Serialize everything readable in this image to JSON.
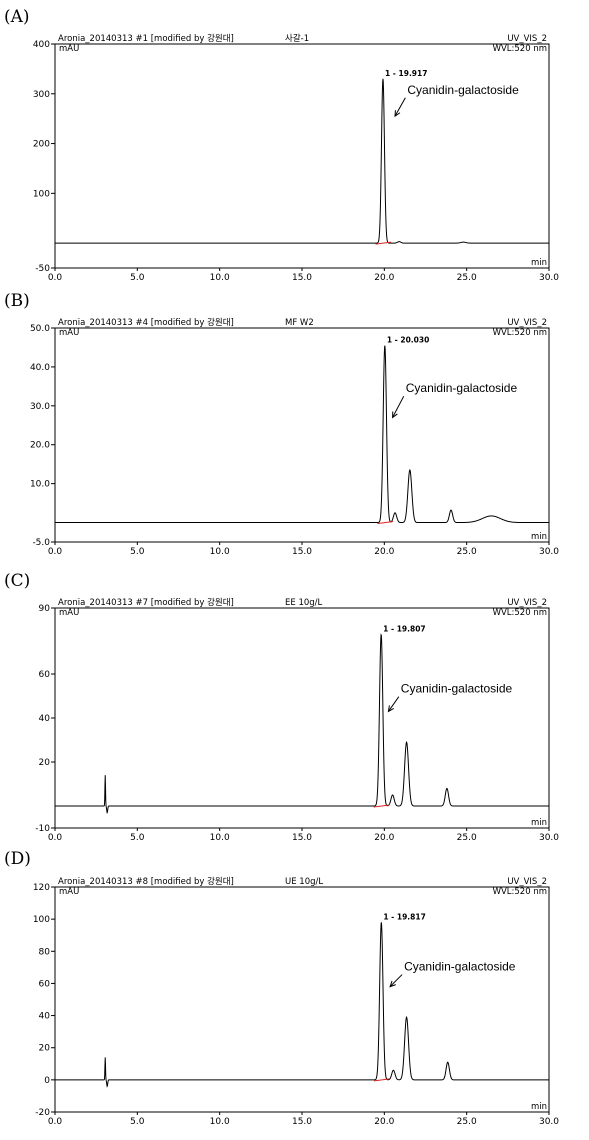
{
  "chart_data": [
    {
      "type": "line",
      "panel": "(A)",
      "header_left": "Aronia_20140313 #1 [modified by 강원대]",
      "sample": "사갈-1",
      "header_right_1": "UV_VIS_2",
      "header_right_2": "WVL:520 nm",
      "y_unit": "mAU",
      "x_unit": "min",
      "xlim": [
        0,
        30
      ],
      "ylim": [
        -50,
        400
      ],
      "x_ticks": [
        "0.0",
        "5.0",
        "10.0",
        "15.0",
        "20.0",
        "25.0",
        "30.0"
      ],
      "y_ticks": [
        {
          "v": -50,
          "t": "-50"
        },
        {
          "v": 100,
          "t": "100"
        },
        {
          "v": 200,
          "t": "200"
        },
        {
          "v": 300,
          "t": "300"
        },
        {
          "v": 400,
          "t": "400"
        }
      ],
      "y_label_ticks": [
        -50,
        100,
        200,
        300
      ],
      "baseline": 0,
      "peaks": [
        {
          "rt": 19.917,
          "height": 330,
          "width": 0.09
        },
        {
          "rt": 20.9,
          "height": 3,
          "width": 0.1
        },
        {
          "rt": 24.8,
          "height": 2,
          "width": 0.15
        }
      ],
      "main_peak_label": "1 - 19.917",
      "annotation": "Cyanidin-galactoside",
      "annotation_x": 21.4,
      "annotation_y": 300,
      "arrow_to": [
        20.65,
        255
      ]
    },
    {
      "type": "line",
      "panel": "(B)",
      "header_left": "Aronia_20140313 #4 [modified by 강원대]",
      "sample": "MF W2",
      "header_right_1": "UV_VIS_2",
      "header_right_2": "WVL:520 nm",
      "y_unit": "mAU",
      "x_unit": "min",
      "xlim": [
        0,
        30
      ],
      "ylim": [
        -5,
        50
      ],
      "x_ticks": [
        "0.0",
        "5.0",
        "10.0",
        "15.0",
        "20.0",
        "25.0",
        "30.0"
      ],
      "y_ticks": [
        {
          "v": -5,
          "t": "-5.0"
        },
        {
          "v": 10,
          "t": "10.0"
        },
        {
          "v": 20,
          "t": "20.0"
        },
        {
          "v": 30,
          "t": "30.0"
        },
        {
          "v": 40,
          "t": "40.0"
        },
        {
          "v": 50,
          "t": "50.0"
        }
      ],
      "baseline": 0,
      "peaks": [
        {
          "rt": 20.03,
          "height": 45.5,
          "width": 0.1
        },
        {
          "rt": 20.65,
          "height": 2.5,
          "width": 0.1
        },
        {
          "rt": 21.55,
          "height": 13.5,
          "width": 0.12
        },
        {
          "rt": 24.05,
          "height": 3.2,
          "width": 0.1
        },
        {
          "rt": 26.5,
          "height": 1.7,
          "width": 0.55
        }
      ],
      "main_peak_label": "1 - 20.030",
      "annotation": "Cyanidin-galactoside",
      "annotation_x": 21.3,
      "annotation_y": 33.5,
      "arrow_to": [
        20.5,
        27
      ]
    },
    {
      "type": "line",
      "panel": "(C)",
      "header_left": "Aronia_20140313 #7 [modified by 강원대]",
      "sample": "EE 10g/L",
      "header_right_1": "UV_VIS_2",
      "header_right_2": "WVL:520 nm",
      "y_unit": "mAU",
      "x_unit": "min",
      "xlim": [
        0,
        30
      ],
      "ylim": [
        -10,
        90
      ],
      "x_ticks": [
        "0.0",
        "5.0",
        "10.0",
        "15.0",
        "20.0",
        "25.0",
        "30.0"
      ],
      "y_ticks": [
        {
          "v": -10,
          "t": "-10"
        },
        {
          "v": 20,
          "t": "20"
        },
        {
          "v": 40,
          "t": "40"
        },
        {
          "v": 60,
          "t": "60"
        },
        {
          "v": 90,
          "t": "90"
        }
      ],
      "baseline": 0,
      "spike": {
        "rt": 3.05,
        "up": 14,
        "down": -3
      },
      "peaks": [
        {
          "rt": 19.807,
          "height": 78,
          "width": 0.1
        },
        {
          "rt": 20.5,
          "height": 5,
          "width": 0.1
        },
        {
          "rt": 21.35,
          "height": 29,
          "width": 0.12
        },
        {
          "rt": 23.8,
          "height": 8,
          "width": 0.1
        }
      ],
      "main_peak_label": "1 - 19.807",
      "annotation": "Cyanidin-galactoside",
      "annotation_x": 21.0,
      "annotation_y": 51.5,
      "arrow_to": [
        20.25,
        43
      ]
    },
    {
      "type": "line",
      "panel": "(D)",
      "header_left": "Aronia_20140313 #8 [modified by 강원대]",
      "sample": "UE 10g/L",
      "header_right_1": "UV_VIS_2",
      "header_right_2": "WVL:520 nm",
      "y_unit": "mAU",
      "x_unit": "min",
      "xlim": [
        0,
        30
      ],
      "ylim": [
        -20,
        120
      ],
      "x_ticks": [
        "0.0",
        "5.0",
        "10.0",
        "15.0",
        "20.0",
        "25.0",
        "30.0"
      ],
      "y_ticks": [
        {
          "v": -20,
          "t": "-20"
        },
        {
          "v": 0,
          "t": "0"
        },
        {
          "v": 20,
          "t": "20"
        },
        {
          "v": 40,
          "t": "40"
        },
        {
          "v": 60,
          "t": "60"
        },
        {
          "v": 80,
          "t": "80"
        },
        {
          "v": 100,
          "t": "100"
        },
        {
          "v": 120,
          "t": "120"
        }
      ],
      "baseline": 0,
      "spike": {
        "rt": 3.05,
        "up": 14,
        "down": -4
      },
      "peaks": [
        {
          "rt": 19.817,
          "height": 98,
          "width": 0.1
        },
        {
          "rt": 20.55,
          "height": 6,
          "width": 0.1
        },
        {
          "rt": 21.35,
          "height": 39,
          "width": 0.12
        },
        {
          "rt": 23.85,
          "height": 11,
          "width": 0.1
        }
      ],
      "main_peak_label": "1 - 19.817",
      "annotation": "Cyanidin-galactoside",
      "annotation_x": 21.2,
      "annotation_y": 68,
      "arrow_to": [
        20.35,
        58
      ]
    }
  ]
}
